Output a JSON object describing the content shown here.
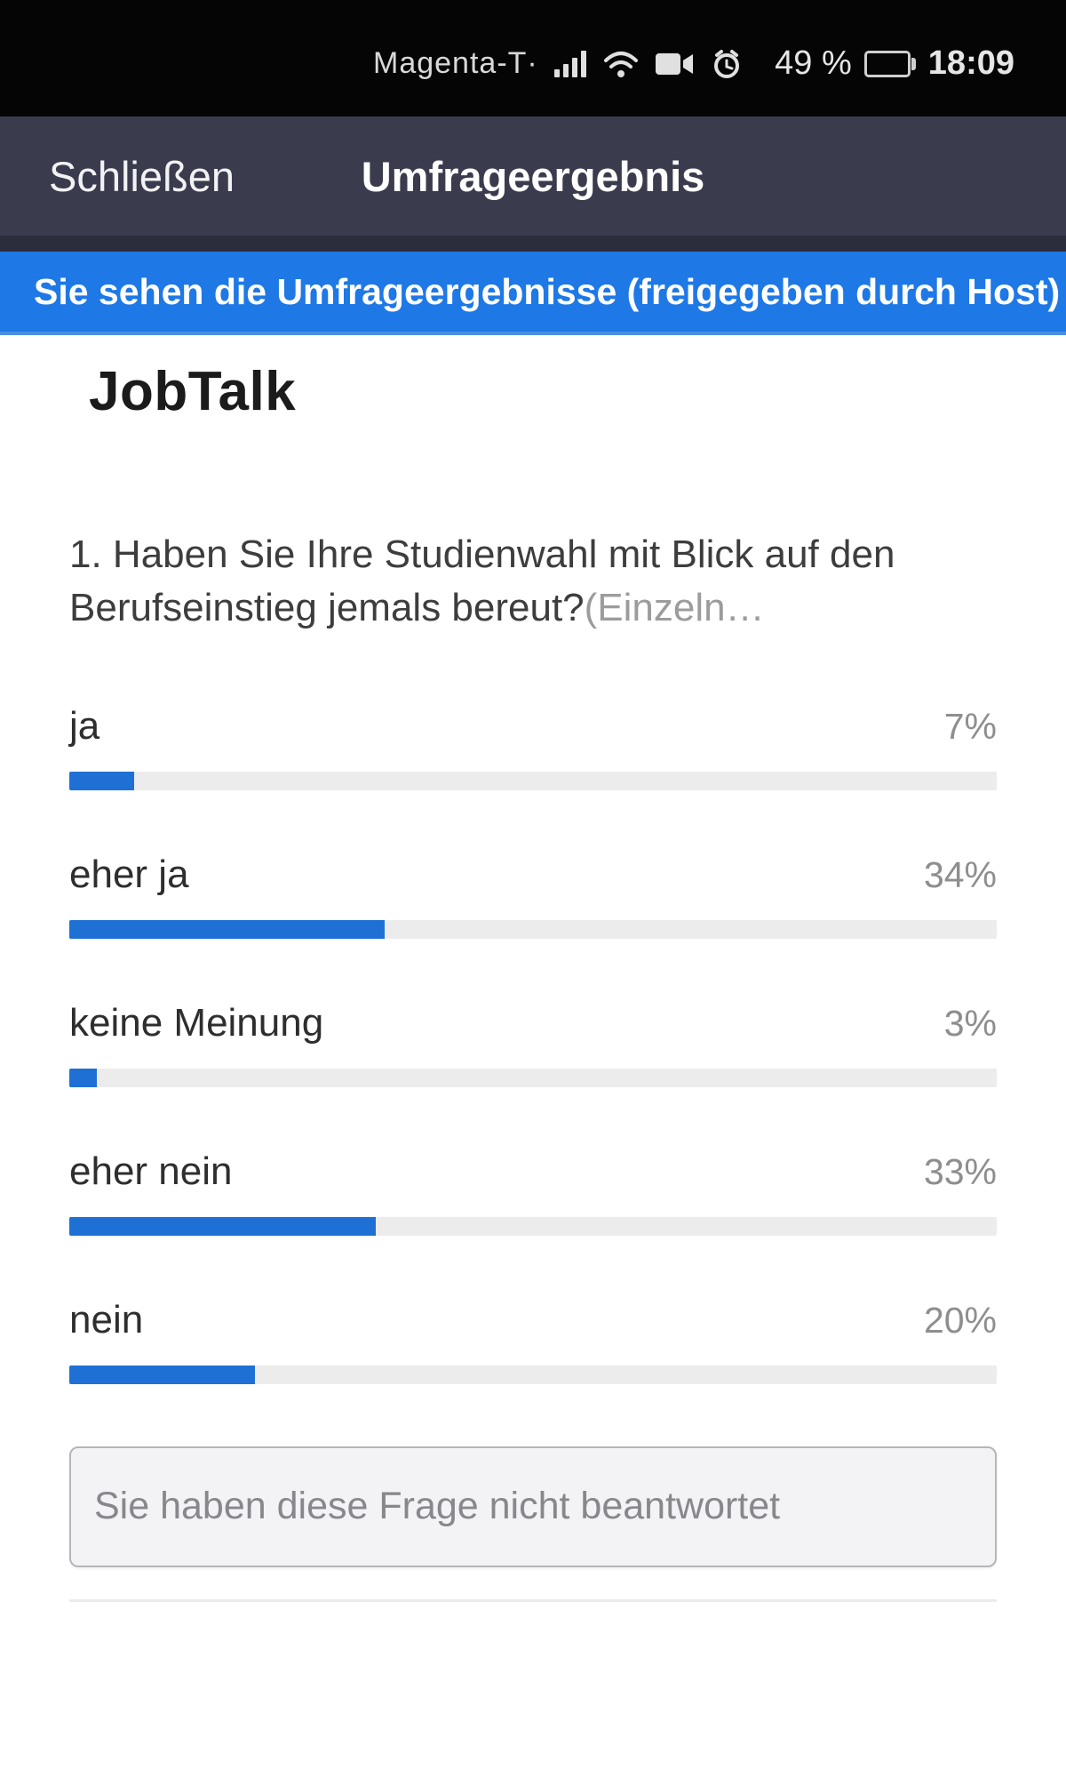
{
  "status_bar": {
    "carrier": "Magenta-T·",
    "battery_percent": "49 %",
    "battery_level": 49,
    "time": "18:09",
    "icons": [
      "signal",
      "wifi",
      "video-camera",
      "alarm"
    ]
  },
  "nav": {
    "close_label": "Schließen",
    "title": "Umfrageergebnis"
  },
  "banner": {
    "text": "Sie sehen die Umfrageergebnisse (freigegeben durch Host)"
  },
  "poll": {
    "title": "JobTalk",
    "question": "1. Haben Sie Ihre Studienwahl mit Blick auf den Berufseinstieg jemals bereut?",
    "question_suffix": "(Einzeln…",
    "options": [
      {
        "label": "ja",
        "percent": "7%",
        "value": 7
      },
      {
        "label": "eher ja",
        "percent": "34%",
        "value": 34
      },
      {
        "label": "keine Meinung",
        "percent": "3%",
        "value": 3
      },
      {
        "label": "eher nein",
        "percent": "33%",
        "value": 33
      },
      {
        "label": "nein",
        "percent": "20%",
        "value": 20
      }
    ],
    "not_answered_notice": "Sie haben diese Frage nicht beantwortet"
  },
  "colors": {
    "header_bg": "#3a3c4e",
    "banner_bg": "#1e78e6",
    "bar_fill": "#1e70d4",
    "bar_track": "#ececec",
    "status_bg": "#050505"
  },
  "chart_data": {
    "type": "bar",
    "title": "1. Haben Sie Ihre Studienwahl mit Blick auf den Berufseinstieg jemals bereut?",
    "categories": [
      "ja",
      "eher ja",
      "keine Meinung",
      "eher nein",
      "nein"
    ],
    "values": [
      7,
      34,
      3,
      33,
      20
    ],
    "unit": "%",
    "xlabel": "",
    "ylabel": "",
    "ylim": [
      0,
      100
    ],
    "orientation": "horizontal",
    "legend": false,
    "grid": false
  }
}
